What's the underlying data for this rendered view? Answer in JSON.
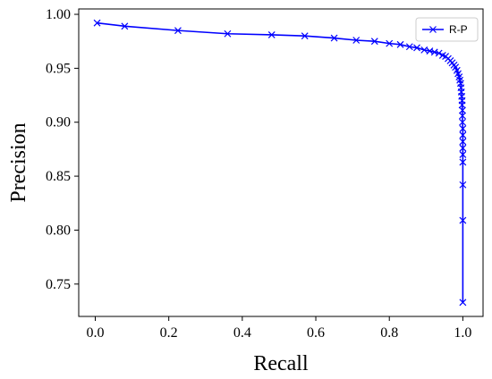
{
  "chart_data": {
    "type": "line",
    "xlabel": "Recall",
    "ylabel": "Precision",
    "xlim": [
      -0.045,
      1.055
    ],
    "ylim": [
      0.72,
      1.005
    ],
    "x_ticks": [
      0.0,
      0.2,
      0.4,
      0.6,
      0.8,
      1.0
    ],
    "x_tick_labels": [
      "0.0",
      "0.2",
      "0.4",
      "0.6",
      "0.8",
      "1.0"
    ],
    "y_ticks": [
      0.75,
      0.8,
      0.85,
      0.9,
      0.95,
      1.0
    ],
    "y_tick_labels": [
      "0.75",
      "0.80",
      "0.85",
      "0.90",
      "0.95",
      "1.00"
    ],
    "grid": false,
    "legend_position": "top-right",
    "series": [
      {
        "name": "R-P",
        "color": "#0000ff",
        "marker": "x",
        "x": [
          0.005,
          0.08,
          0.225,
          0.36,
          0.48,
          0.57,
          0.65,
          0.71,
          0.76,
          0.8,
          0.83,
          0.855,
          0.875,
          0.895,
          0.91,
          0.923,
          0.935,
          0.945,
          0.953,
          0.96,
          0.966,
          0.971,
          0.976,
          0.98,
          0.984,
          0.987,
          0.99,
          0.992,
          0.994,
          0.995,
          0.996,
          0.997,
          0.998,
          0.998,
          0.999,
          0.999,
          0.999,
          1.0,
          1.0,
          1.0,
          1.0,
          1.0,
          1.0,
          1.0,
          1.0,
          1.0
        ],
        "y": [
          0.992,
          0.989,
          0.985,
          0.982,
          0.981,
          0.98,
          0.978,
          0.976,
          0.975,
          0.973,
          0.972,
          0.97,
          0.969,
          0.967,
          0.966,
          0.965,
          0.964,
          0.962,
          0.961,
          0.959,
          0.957,
          0.955,
          0.953,
          0.951,
          0.948,
          0.945,
          0.942,
          0.939,
          0.936,
          0.932,
          0.928,
          0.924,
          0.92,
          0.916,
          0.911,
          0.906,
          0.9,
          0.894,
          0.888,
          0.882,
          0.876,
          0.87,
          0.863,
          0.842,
          0.809,
          0.733
        ]
      }
    ]
  }
}
